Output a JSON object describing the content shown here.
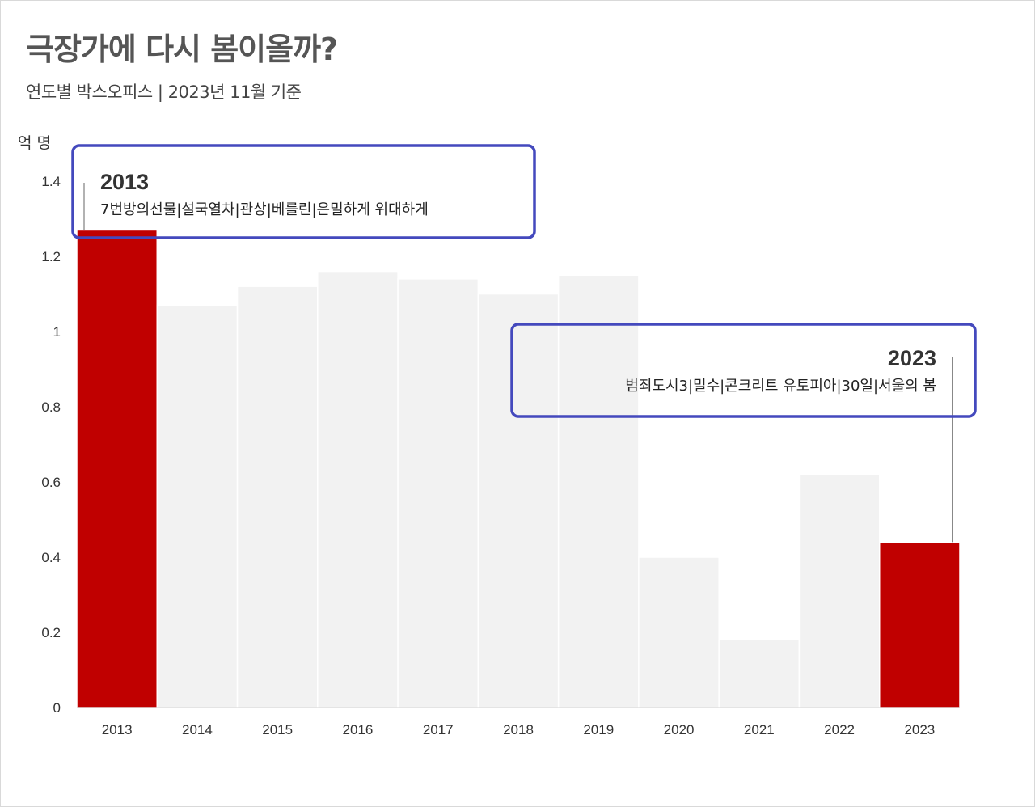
{
  "title": "극장가에 다시 봄이올까?",
  "subtitle": "연도별 박스오피스 | 2023년 11월 기준",
  "colors": {
    "highlight": "#c00000",
    "normal": "#f2f2f2",
    "annotation_border": "#4449bd"
  },
  "chart_data": {
    "type": "bar",
    "title": "극장가에 다시 봄이올까?",
    "subtitle": "연도별 박스오피스 | 2023년 11월 기준",
    "ylabel": "억 명",
    "xlabel": "",
    "ylim": [
      0,
      1.4
    ],
    "yticks": [
      "0",
      "0.2",
      "0.4",
      "0.6",
      "0.8",
      "1",
      "1.2",
      "1.4"
    ],
    "grid": false,
    "categories": [
      "2013",
      "2014",
      "2015",
      "2016",
      "2017",
      "2018",
      "2019",
      "2020",
      "2021",
      "2022",
      "2023"
    ],
    "values": [
      1.27,
      1.07,
      1.12,
      1.16,
      1.14,
      1.1,
      1.15,
      0.4,
      0.18,
      0.62,
      0.44
    ],
    "highlighted": [
      "2013",
      "2023"
    ],
    "annotations": [
      {
        "year": "2013",
        "films": "7번방의선물|설국열차|관상|베를린|은밀하게 위대하게"
      },
      {
        "year": "2023",
        "films": "범죄도시3|밀수|콘크리트 유토피아|30일|서울의 봄"
      }
    ]
  }
}
